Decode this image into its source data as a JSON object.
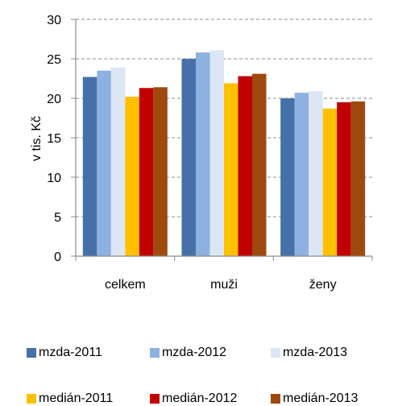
{
  "chart_data": {
    "type": "bar",
    "categories": [
      "celkem",
      "muži",
      "ženy"
    ],
    "ylabel": "v tis. Kč",
    "xlabel": "",
    "ylim": [
      0,
      30
    ],
    "yticks": [
      0,
      5,
      10,
      15,
      20,
      25,
      30
    ],
    "grid": "horizontal dashed",
    "legend_position": "bottom",
    "series": [
      {
        "name": "mzda-2011",
        "color": "#4571A8",
        "values": [
          22.7,
          25.0,
          20.0
        ]
      },
      {
        "name": "mzda-2012",
        "color": "#8DB1E0",
        "values": [
          23.5,
          25.8,
          20.7
        ]
      },
      {
        "name": "mzda-2013",
        "color": "#DCE6F4",
        "values": [
          23.9,
          26.1,
          20.9
        ]
      },
      {
        "name": "medián-2011",
        "color": "#FFC000",
        "values": [
          20.2,
          21.9,
          18.7
        ]
      },
      {
        "name": "medián-2012",
        "color": "#C00000",
        "values": [
          21.3,
          22.8,
          19.5
        ]
      },
      {
        "name": "medián-2013",
        "color": "#A0490E",
        "values": [
          21.4,
          23.1,
          19.6
        ]
      }
    ]
  }
}
